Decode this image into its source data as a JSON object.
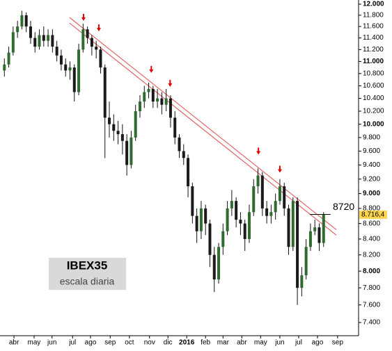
{
  "chart_data": {
    "type": "candlestick",
    "log_scale": true,
    "xlim": [
      -1,
      81
    ],
    "ylim": [
      7253,
      12076
    ],
    "xticks": [
      {
        "value": 2.2,
        "label": "abr"
      },
      {
        "value": 6.8,
        "label": "may"
      },
      {
        "value": 10.9,
        "label": "jun"
      },
      {
        "value": 15.6,
        "label": "jul"
      },
      {
        "value": 19.7,
        "label": "ago"
      },
      {
        "value": 24.2,
        "label": "sep"
      },
      {
        "value": 28.6,
        "label": "oct"
      },
      {
        "value": 33.2,
        "label": "nov"
      },
      {
        "value": 37.4,
        "label": "dic"
      },
      {
        "value": 41.7,
        "label": "2016"
      },
      {
        "value": 46,
        "label": "feb"
      },
      {
        "value": 50,
        "label": "mar"
      },
      {
        "value": 54.3,
        "label": "abr"
      },
      {
        "value": 58.6,
        "label": "may"
      },
      {
        "value": 63,
        "label": "jun"
      },
      {
        "value": 67.3,
        "label": "jul"
      },
      {
        "value": 71.6,
        "label": "ago"
      },
      {
        "value": 76.2,
        "label": "sep"
      }
    ],
    "yticks": [
      {
        "value": 7400,
        "label": "7.400"
      },
      {
        "value": 7600,
        "label": "7.600"
      },
      {
        "value": 7800,
        "label": "7.800"
      },
      {
        "value": 8000,
        "label": "8.000"
      },
      {
        "value": 8200,
        "label": "8.200"
      },
      {
        "value": 8400,
        "label": "8.400"
      },
      {
        "value": 8600,
        "label": "8.600"
      },
      {
        "value": 8800,
        "label": "8.800"
      },
      {
        "value": 9000,
        "label": "9.000"
      },
      {
        "value": 9200,
        "label": "9.200"
      },
      {
        "value": 9400,
        "label": "9.400"
      },
      {
        "value": 9600,
        "label": "9.600"
      },
      {
        "value": 9800,
        "label": "9.800"
      },
      {
        "value": 10000,
        "label": "10.000"
      },
      {
        "value": 10200,
        "label": "10.200"
      },
      {
        "value": 10400,
        "label": "10.400"
      },
      {
        "value": 10600,
        "label": "10.600"
      },
      {
        "value": 10800,
        "label": "10.800"
      },
      {
        "value": 11000,
        "label": "11.000"
      },
      {
        "value": 11200,
        "label": "11.200"
      },
      {
        "value": 11400,
        "label": "11.400"
      },
      {
        "value": 11600,
        "label": "11.600"
      },
      {
        "value": 11800,
        "label": "11.800"
      },
      {
        "value": 12000,
        "label": "12.000"
      }
    ],
    "x": [
      0,
      1,
      2,
      3,
      4,
      5,
      6,
      7,
      8,
      9,
      10,
      11,
      12,
      13,
      14,
      15,
      16,
      17,
      18,
      19,
      20,
      21,
      22,
      23,
      24,
      25,
      26,
      27,
      28,
      29,
      30,
      31,
      32,
      33,
      34,
      35,
      36,
      37,
      38,
      39,
      40,
      41,
      42,
      43,
      44,
      45,
      46,
      47,
      48,
      49,
      50,
      51,
      52,
      53,
      54,
      55,
      56,
      57,
      58,
      59,
      60,
      61,
      62,
      63,
      64,
      65,
      66,
      67,
      68,
      69,
      70,
      71,
      72,
      73
    ],
    "open": [
      10850,
      10950,
      11150,
      11500,
      11600,
      11800,
      11600,
      11400,
      11250,
      11450,
      11350,
      11450,
      11250,
      11100,
      10950,
      10850,
      10900,
      10500,
      11200,
      11550,
      11400,
      11250,
      11200,
      10900,
      10100,
      10000,
      9900,
      9850,
      9750,
      9400,
      9800,
      10200,
      10350,
      10500,
      10550,
      10350,
      10400,
      10300,
      10400,
      10100,
      9800,
      9600,
      9500,
      9100,
      8700,
      8500,
      8800,
      8600,
      8200,
      7900,
      8300,
      8500,
      8800,
      8900,
      8650,
      8600,
      8400,
      8750,
      9100,
      9250,
      8800,
      8700,
      8750,
      8900,
      9100,
      8800,
      8300,
      8900,
      7800,
      7950,
      8300,
      8500,
      8550,
      8350
    ],
    "high": [
      11050,
      11250,
      11600,
      11700,
      11880,
      11850,
      11700,
      11500,
      11550,
      11600,
      11550,
      11550,
      11350,
      11200,
      11050,
      11000,
      10950,
      11300,
      11650,
      11600,
      11450,
      11350,
      11250,
      10950,
      10350,
      10150,
      10050,
      10000,
      9850,
      9900,
      10300,
      10450,
      10600,
      10650,
      10600,
      10550,
      10500,
      10550,
      10450,
      10200,
      9850,
      9700,
      9550,
      9150,
      8800,
      8900,
      8850,
      8650,
      8300,
      8350,
      8600,
      8900,
      9050,
      8950,
      8750,
      8650,
      8850,
      9200,
      9350,
      9300,
      8900,
      8850,
      9000,
      9200,
      9150,
      8850,
      8950,
      8950,
      8050,
      8400,
      8600,
      8650,
      8600,
      8750
    ],
    "low": [
      10750,
      10900,
      11100,
      11400,
      11550,
      11500,
      11300,
      11150,
      11200,
      11250,
      11250,
      11150,
      11000,
      10850,
      10750,
      10700,
      10350,
      10450,
      11150,
      11300,
      11100,
      11050,
      10800,
      9500,
      9800,
      9750,
      9700,
      9550,
      9250,
      9350,
      9750,
      10100,
      10250,
      10400,
      10250,
      10250,
      10150,
      10200,
      9950,
      9700,
      9500,
      9400,
      8950,
      8600,
      8350,
      8400,
      8450,
      8050,
      7750,
      7850,
      8200,
      8450,
      8700,
      8550,
      8450,
      8250,
      8350,
      8700,
      9000,
      8700,
      8600,
      8600,
      8650,
      8850,
      8700,
      8200,
      8250,
      7600,
      7700,
      7900,
      8250,
      8450,
      8250,
      8300
    ],
    "close": [
      10950,
      11150,
      11500,
      11600,
      11800,
      11600,
      11400,
      11250,
      11450,
      11350,
      11450,
      11250,
      11100,
      10950,
      10850,
      10900,
      10500,
      11200,
      11550,
      11400,
      11250,
      11200,
      10900,
      10100,
      10000,
      9900,
      9850,
      9750,
      9400,
      9800,
      10200,
      10350,
      10500,
      10550,
      10350,
      10400,
      10300,
      10400,
      10100,
      9800,
      9600,
      9500,
      9100,
      8700,
      8500,
      8800,
      8600,
      8200,
      7900,
      8300,
      8500,
      8800,
      8900,
      8650,
      8600,
      8400,
      8750,
      9100,
      9250,
      8800,
      8700,
      8750,
      8900,
      9100,
      8800,
      8300,
      8900,
      7800,
      7950,
      8300,
      8500,
      8550,
      8350,
      8716.4
    ],
    "up_color": "#2e6b2e",
    "down_color": "#1a1a1a",
    "trendlines": [
      {
        "x": [
          14.9,
          75.9
        ],
        "values": [
          11760,
          8520
        ],
        "color": "#e06666"
      },
      {
        "x": [
          14.9,
          75.9
        ],
        "values": [
          11660,
          8450
        ],
        "color": "#e06666"
      }
    ],
    "markers": {
      "x": [
        18.1,
        21.6,
        33.6,
        37.9,
        58.1,
        63
      ],
      "values": [
        11700,
        11515,
        10810,
        10585,
        9550,
        9290
      ],
      "color": "#e00000"
    },
    "level": 8720,
    "level_x": [
      69.9,
      74.6
    ],
    "last_price": {
      "value": 8716.4,
      "label": "8.716,4"
    },
    "last_color": "#ffd54f",
    "title": "IBEX35",
    "subtitle": "escala diaria"
  }
}
